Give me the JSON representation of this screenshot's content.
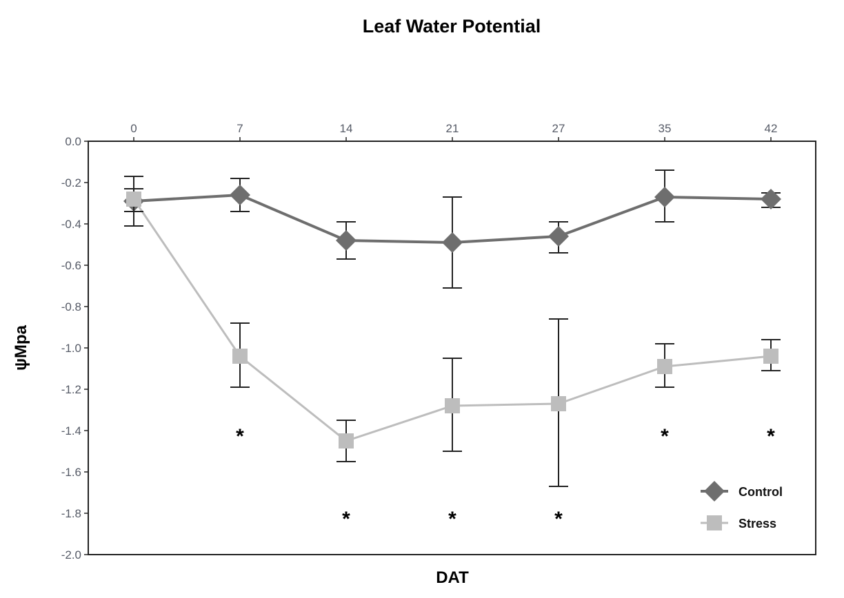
{
  "chart_data": {
    "type": "line",
    "title": "Leaf Water Potential",
    "xlabel": "DAT",
    "ylabel": "ψMpa",
    "x_axis_position": "top",
    "categories": [
      "0",
      "7",
      "14",
      "21",
      "27",
      "35",
      "42"
    ],
    "ylim": [
      -2.0,
      0.0
    ],
    "yticks": [
      0.0,
      -0.2,
      -0.4,
      -0.6,
      -0.8,
      -1.0,
      -1.2,
      -1.4,
      -1.6,
      -1.8,
      -2.0
    ],
    "ytick_labels": [
      "0.0",
      "-0.2",
      "-0.4",
      "-0.6",
      "-0.8",
      "-1.0",
      "-1.2",
      "-1.4",
      "-1.6",
      "-1.8",
      "-2.0"
    ],
    "grid": false,
    "legend_position": "bottom-right",
    "series": [
      {
        "name": "Control",
        "marker": "diamond",
        "color": "#6e6e6e",
        "values": [
          -0.29,
          -0.26,
          -0.48,
          -0.49,
          -0.46,
          -0.27,
          -0.28
        ],
        "err_upper": [
          -0.17,
          -0.18,
          -0.39,
          -0.27,
          -0.39,
          -0.14,
          -0.25
        ],
        "err_lower": [
          -0.41,
          -0.34,
          -0.57,
          -0.71,
          -0.54,
          -0.39,
          -0.32
        ]
      },
      {
        "name": "Stress",
        "marker": "square",
        "color": "#bdbdbd",
        "values": [
          -0.28,
          -1.04,
          -1.45,
          -1.28,
          -1.27,
          -1.09,
          -1.04
        ],
        "err_upper": [
          -0.23,
          -0.88,
          -1.35,
          -1.05,
          -0.86,
          -0.98,
          -0.96
        ],
        "err_lower": [
          -0.34,
          -1.19,
          -1.55,
          -1.5,
          -1.67,
          -1.19,
          -1.11
        ]
      }
    ],
    "annotations": [
      {
        "text": "*",
        "category": "7",
        "y": -1.4
      },
      {
        "text": "*",
        "category": "14",
        "y": -1.8
      },
      {
        "text": "*",
        "category": "21",
        "y": -1.8
      },
      {
        "text": "*",
        "category": "27",
        "y": -1.8
      },
      {
        "text": "*",
        "category": "35",
        "y": -1.4
      },
      {
        "text": "*",
        "category": "42",
        "y": -1.4
      }
    ]
  }
}
